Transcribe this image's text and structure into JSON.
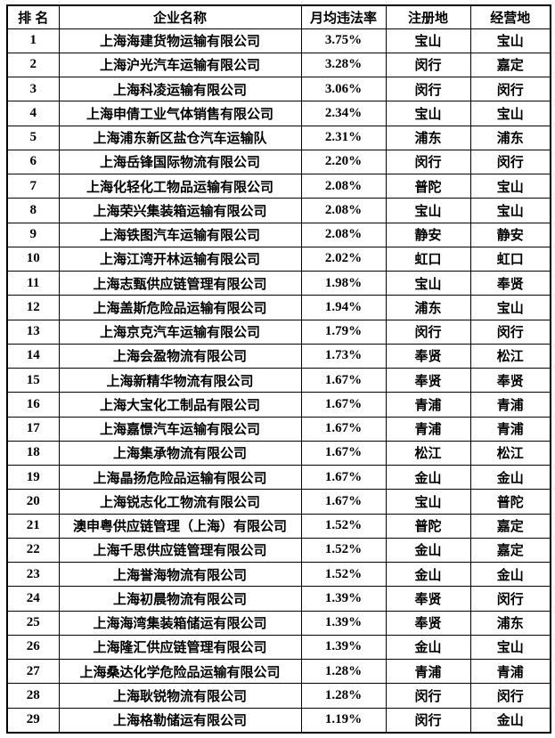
{
  "colors": {
    "border": "#000000",
    "text": "#000000",
    "background": "#ffffff"
  },
  "table": {
    "columns": [
      {
        "key": "rank",
        "label": "排 名"
      },
      {
        "key": "company",
        "label": "企业名称"
      },
      {
        "key": "rate",
        "label": "月均违法率"
      },
      {
        "key": "registered",
        "label": "注册地"
      },
      {
        "key": "operating",
        "label": "经营地"
      }
    ],
    "rows": [
      [
        "1",
        "上海海建货物运输有限公司",
        "3.75%",
        "宝山",
        "宝山"
      ],
      [
        "2",
        "上海沪光汽车运输有限公司",
        "3.28%",
        "闵行",
        "嘉定"
      ],
      [
        "3",
        "上海科凌运输有限公司",
        "3.06%",
        "闵行",
        "闵行"
      ],
      [
        "4",
        "上海申倩工业气体销售有限公司",
        "2.34%",
        "宝山",
        "宝山"
      ],
      [
        "5",
        "上海浦东新区盐仓汽车运输队",
        "2.31%",
        "浦东",
        "浦东"
      ],
      [
        "6",
        "上海岳锋国际物流有限公司",
        "2.20%",
        "闵行",
        "闵行"
      ],
      [
        "7",
        "上海化轻化工物品运输有限公司",
        "2.08%",
        "普陀",
        "宝山"
      ],
      [
        "8",
        "上海荣兴集装箱运输有限公司",
        "2.08%",
        "宝山",
        "宝山"
      ],
      [
        "9",
        "上海铁图汽车运输有限公司",
        "2.08%",
        "静安",
        "静安"
      ],
      [
        "10",
        "上海江湾开林运输有限公司",
        "2.02%",
        "虹口",
        "虹口"
      ],
      [
        "11",
        "上海志甄供应链管理有限公司",
        "1.98%",
        "宝山",
        "奉贤"
      ],
      [
        "12",
        "上海盖斯危险品运输有限公司",
        "1.94%",
        "浦东",
        "宝山"
      ],
      [
        "13",
        "上海京克汽车运输有限公司",
        "1.79%",
        "闵行",
        "闵行"
      ],
      [
        "14",
        "上海会盈物流有限公司",
        "1.73%",
        "奉贤",
        "松江"
      ],
      [
        "15",
        "上海新精华物流有限公司",
        "1.67%",
        "奉贤",
        "奉贤"
      ],
      [
        "16",
        "上海大宝化工制品有限公司",
        "1.67%",
        "青浦",
        "青浦"
      ],
      [
        "17",
        "上海嘉憬汽车运输有限公司",
        "1.67%",
        "青浦",
        "青浦"
      ],
      [
        "18",
        "上海集承物流有限公司",
        "1.67%",
        "松江",
        "松江"
      ],
      [
        "19",
        "上海晶扬危险品运输有限公司",
        "1.67%",
        "金山",
        "金山"
      ],
      [
        "20",
        "上海锐志化工物流有限公司",
        "1.67%",
        "宝山",
        "普陀"
      ],
      [
        "21",
        "澳申粤供应链管理（上海）有限公司",
        "1.52%",
        "普陀",
        "嘉定"
      ],
      [
        "22",
        "上海千思供应链管理有限公司",
        "1.52%",
        "金山",
        "嘉定"
      ],
      [
        "23",
        "上海誉海物流有限公司",
        "1.52%",
        "金山",
        "金山"
      ],
      [
        "24",
        "上海初晨物流有限公司",
        "1.39%",
        "奉贤",
        "闵行"
      ],
      [
        "25",
        "上海海湾集装箱储运有限公司",
        "1.39%",
        "奉贤",
        "浦东"
      ],
      [
        "26",
        "上海隆汇供应链管理有限公司",
        "1.39%",
        "金山",
        "宝山"
      ],
      [
        "27",
        "上海桑达化学危险品运输有限公司",
        "1.28%",
        "青浦",
        "青浦"
      ],
      [
        "28",
        "上海耿锐物流有限公司",
        "1.28%",
        "闵行",
        "闵行"
      ],
      [
        "29",
        "上海格勒储运有限公司",
        "1.19%",
        "闵行",
        "金山"
      ]
    ]
  }
}
